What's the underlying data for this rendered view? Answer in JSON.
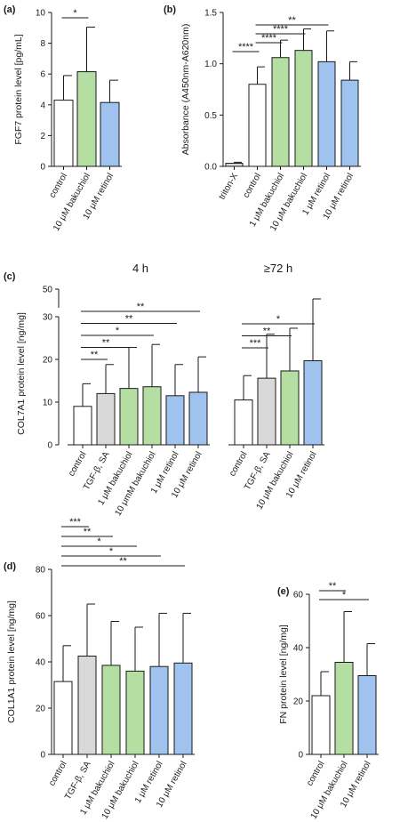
{
  "colors": {
    "control": "#ffffff",
    "tgf": "#d9d9d9",
    "bakuchiol": "#b5dea3",
    "retinol": "#9fc2ef",
    "triton": "#d9d9d9",
    "stroke": "#1a1a1a"
  },
  "chart_data": [
    {
      "panel": "(a)",
      "type": "bar",
      "ylabel": "FGF7 protein level [pg/mL]",
      "ylim": [
        0,
        10
      ],
      "yticks": [
        "0",
        "2",
        "4",
        "6",
        "8",
        "10"
      ],
      "categories": [
        "control",
        "10 μM bakuchiol",
        "10 μM retinol"
      ],
      "values": [
        4.3,
        6.15,
        4.15
      ],
      "errors": [
        1.6,
        2.9,
        1.45
      ],
      "color_keys": [
        "control",
        "bakuchiol",
        "retinol"
      ],
      "significance": [
        {
          "from": 0,
          "to": 1,
          "label": "*"
        }
      ]
    },
    {
      "panel": "(b)",
      "type": "bar",
      "ylabel": "Absorbance (A450nm-A620nm)",
      "ylim": [
        0,
        1.5
      ],
      "yticks": [
        "0.0",
        "0.5",
        "1.0",
        "1.5"
      ],
      "categories": [
        "triton-X",
        "control",
        "1 μM bakuchiol",
        "10 μM bakuchiol",
        "1 μM retinol",
        "10 μM retinol"
      ],
      "values": [
        0.03,
        0.8,
        1.06,
        1.13,
        1.02,
        0.84
      ],
      "errors": [
        0.01,
        0.17,
        0.17,
        0.21,
        0.3,
        0.18
      ],
      "color_keys": [
        "triton",
        "control",
        "bakuchiol",
        "bakuchiol",
        "retinol",
        "retinol"
      ],
      "significance": [
        {
          "from": 0,
          "to": 1,
          "label": "****"
        },
        {
          "from": 1,
          "to": 2,
          "label": "****"
        },
        {
          "from": 1,
          "to": 3,
          "label": "****"
        },
        {
          "from": 1,
          "to": 4,
          "label": "**"
        }
      ]
    },
    {
      "panel": "(c)",
      "type": "bar",
      "ylabel": "COL7A1 protein level [ng/mg]",
      "ylim": [
        0,
        50
      ],
      "axis_break": [
        30,
        50
      ],
      "yticks": [
        "0",
        "10",
        "20",
        "30",
        "50"
      ],
      "group_titles": [
        "4 h",
        "≥72 h"
      ],
      "groups": [
        {
          "title": "4 h",
          "categories": [
            "control",
            "TGF-β, SA",
            "1 μM bakuchiol",
            "10 μmM bakuchiol",
            "1 μM retinol",
            "10 μM retinol"
          ],
          "values": [
            9.0,
            12.0,
            13.2,
            13.6,
            11.5,
            12.3
          ],
          "errors": [
            5.3,
            6.8,
            9.6,
            9.9,
            7.3,
            8.3
          ],
          "color_keys": [
            "control",
            "tgf",
            "bakuchiol",
            "bakuchiol",
            "retinol",
            "retinol"
          ],
          "significance": [
            {
              "from": 0,
              "to": 1,
              "label": "**"
            },
            {
              "from": 0,
              "to": 2,
              "label": "**"
            },
            {
              "from": 0,
              "to": 3,
              "label": "*"
            },
            {
              "from": 0,
              "to": 4,
              "label": "**"
            },
            {
              "from": 0,
              "to": 5,
              "label": "**"
            }
          ]
        },
        {
          "title": "≥72 h",
          "categories": [
            "control",
            "TGF-β, SA",
            "10 μM bakuchiol",
            "10 μM retinol"
          ],
          "values": [
            10.5,
            15.6,
            17.3,
            19.7
          ],
          "errors": [
            5.7,
            10.3,
            10.0,
            18.0
          ],
          "color_keys": [
            "control",
            "tgf",
            "bakuchiol",
            "retinol"
          ],
          "significance": [
            {
              "from": 0,
              "to": 1,
              "label": "***"
            },
            {
              "from": 0,
              "to": 2,
              "label": "**"
            },
            {
              "from": 0,
              "to": 3,
              "label": "*"
            }
          ]
        }
      ]
    },
    {
      "panel": "(d)",
      "type": "bar",
      "ylabel": "COL1A1 protein level [ng/mg]",
      "ylim": [
        0,
        80
      ],
      "yticks": [
        "0",
        "20",
        "40",
        "60",
        "80"
      ],
      "categories": [
        "control",
        "TGF-β, SA",
        "1 μM bakuchiol",
        "10 μM bakuchiol",
        "1 μM retinol",
        "10 μM retinol"
      ],
      "values": [
        31.5,
        42.5,
        38.5,
        36.0,
        38.0,
        39.5
      ],
      "errors": [
        15.5,
        22.5,
        19.0,
        19.0,
        23.0,
        21.5
      ],
      "color_keys": [
        "control",
        "tgf",
        "bakuchiol",
        "bakuchiol",
        "retinol",
        "retinol"
      ],
      "significance": [
        {
          "from": 0,
          "to": 1,
          "label": "***"
        },
        {
          "from": 0,
          "to": 2,
          "label": "**"
        },
        {
          "from": 0,
          "to": 3,
          "label": "*"
        },
        {
          "from": 0,
          "to": 4,
          "label": "*"
        },
        {
          "from": 0,
          "to": 5,
          "label": "**"
        }
      ]
    },
    {
      "panel": "(e)",
      "type": "bar",
      "ylabel": "FN protein level [ng/mg]",
      "ylim": [
        0,
        60
      ],
      "yticks": [
        "0",
        "20",
        "40",
        "60"
      ],
      "categories": [
        "control",
        "10 μM bakuchiol",
        "10 μM retinol"
      ],
      "values": [
        22.0,
        34.5,
        29.5
      ],
      "errors": [
        9.0,
        19.0,
        12.0
      ],
      "color_keys": [
        "control",
        "bakuchiol",
        "retinol"
      ],
      "significance": [
        {
          "from": 0,
          "to": 1,
          "label": "**"
        },
        {
          "from": 0,
          "to": 2,
          "label": "*"
        }
      ]
    }
  ]
}
